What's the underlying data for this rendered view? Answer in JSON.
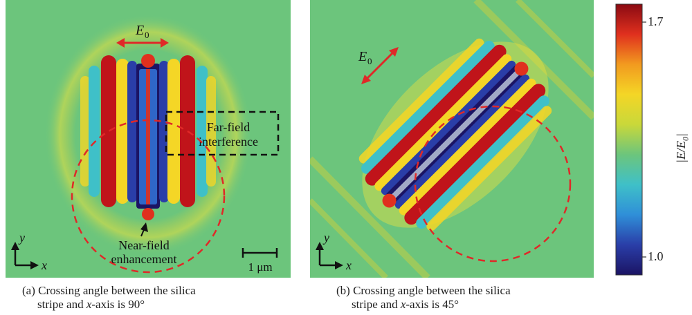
{
  "panel_a": {
    "field_label": "E",
    "field_subscript": "0",
    "far_field_line1": "Far-field",
    "far_field_line2": "interference",
    "near_field_line1": "Near-field",
    "near_field_line2": "enhancement",
    "scale_label": "1 μm",
    "axis_y": "y",
    "axis_x": "x",
    "caption_line1": "(a)  Crossing angle between the silica",
    "caption_line2_pre": "stripe and ",
    "caption_line2_var": "x",
    "caption_line2_post": "-axis is 90°"
  },
  "panel_b": {
    "field_label": "E",
    "field_subscript": "0",
    "axis_y": "y",
    "axis_x": "x",
    "caption_line1": "(b) Crossing angle between the silica",
    "caption_line2_pre": "stripe and ",
    "caption_line2_var": "x",
    "caption_line2_post": "-axis is 45°"
  },
  "colorbar": {
    "max_label": "1.7",
    "min_label": "1.0",
    "title": "|E/E0|",
    "stops": [
      "#1b1464",
      "#2a3ea8",
      "#2f8fd8",
      "#3fc0c8",
      "#6cc57c",
      "#c9d83a",
      "#f4d626",
      "#f29a1f",
      "#e0301e",
      "#8a0a12"
    ]
  },
  "colors": {
    "background_field": "#6cc57c",
    "annotation_red": "#e02828",
    "annotation_black": "#111111"
  }
}
